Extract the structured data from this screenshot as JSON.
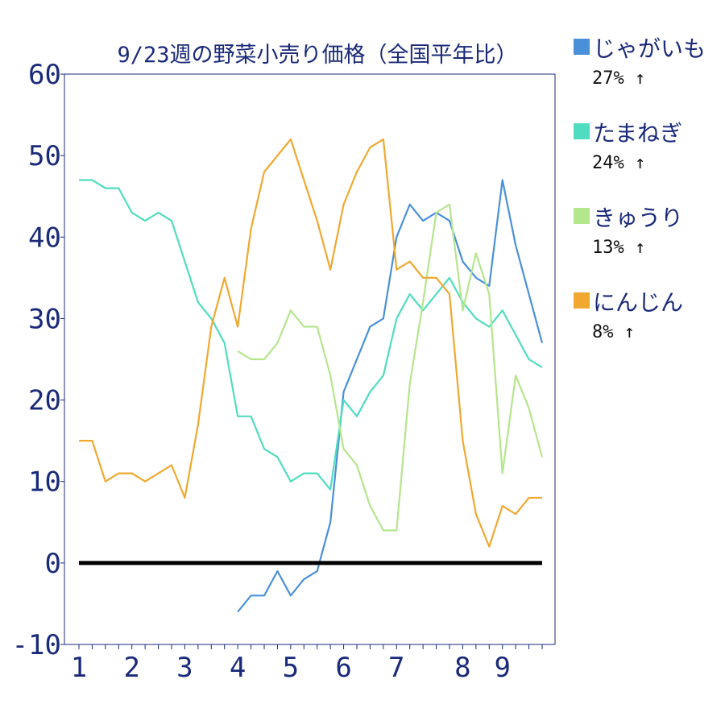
{
  "chart_data": {
    "type": "line",
    "title": "9/23週の野菜小売り価格（全国平年比）",
    "xlabel": "",
    "ylabel": "",
    "ylim": [
      -10,
      60
    ],
    "yticks": [
      "60",
      "50",
      "40",
      "30",
      "20",
      "10",
      "0",
      "-10"
    ],
    "xticks": [
      {
        "label": "1",
        "x": 0
      },
      {
        "label": "2",
        "x": 4
      },
      {
        "label": "3",
        "x": 8
      },
      {
        "label": "4",
        "x": 12
      },
      {
        "label": "5",
        "x": 16
      },
      {
        "label": "6",
        "x": 20
      },
      {
        "label": "7",
        "x": 24
      },
      {
        "label": "8",
        "x": 29
      },
      {
        "label": "9",
        "x": 32
      }
    ],
    "xlim": [
      0,
      35
    ],
    "baseline": 0,
    "grid": false,
    "legend_position": "right",
    "series": [
      {
        "name": "じゃがいも",
        "summary": "27% ↑",
        "color": "#4a90d9",
        "values": [
          null,
          null,
          null,
          null,
          null,
          null,
          null,
          null,
          null,
          null,
          null,
          null,
          -6,
          -4,
          -4,
          -1,
          -4,
          -2,
          -1,
          5,
          21,
          25,
          29,
          30,
          40,
          44,
          42,
          43,
          42,
          37,
          35,
          34,
          47,
          39,
          33,
          27
        ]
      },
      {
        "name": "たまねぎ",
        "summary": "24% ↑",
        "color": "#50dcc0",
        "values": [
          47,
          47,
          46,
          46,
          43,
          42,
          43,
          42,
          37,
          32,
          30,
          27,
          18,
          18,
          14,
          13,
          10,
          11,
          11,
          9,
          20,
          18,
          21,
          23,
          30,
          33,
          31,
          33,
          35,
          32,
          30,
          29,
          31,
          28,
          25,
          24
        ]
      },
      {
        "name": "きゅうり",
        "summary": "13% ↑",
        "color": "#b4e68c",
        "values": [
          null,
          null,
          null,
          null,
          null,
          null,
          null,
          null,
          null,
          null,
          null,
          null,
          26,
          25,
          25,
          27,
          31,
          29,
          29,
          23,
          14,
          12,
          7,
          4,
          4,
          22,
          32,
          43,
          44,
          31,
          38,
          33,
          11,
          23,
          19,
          13
        ]
      },
      {
        "name": "にんじん",
        "summary": "8% ↑",
        "color": "#f0a830",
        "values": [
          15,
          15,
          10,
          11,
          11,
          10,
          11,
          12,
          8,
          17,
          29,
          35,
          29,
          41,
          48,
          50,
          52,
          47,
          42,
          36,
          44,
          48,
          51,
          52,
          36,
          37,
          35,
          35,
          33,
          15,
          6,
          2,
          7,
          6,
          8,
          8
        ]
      }
    ]
  }
}
